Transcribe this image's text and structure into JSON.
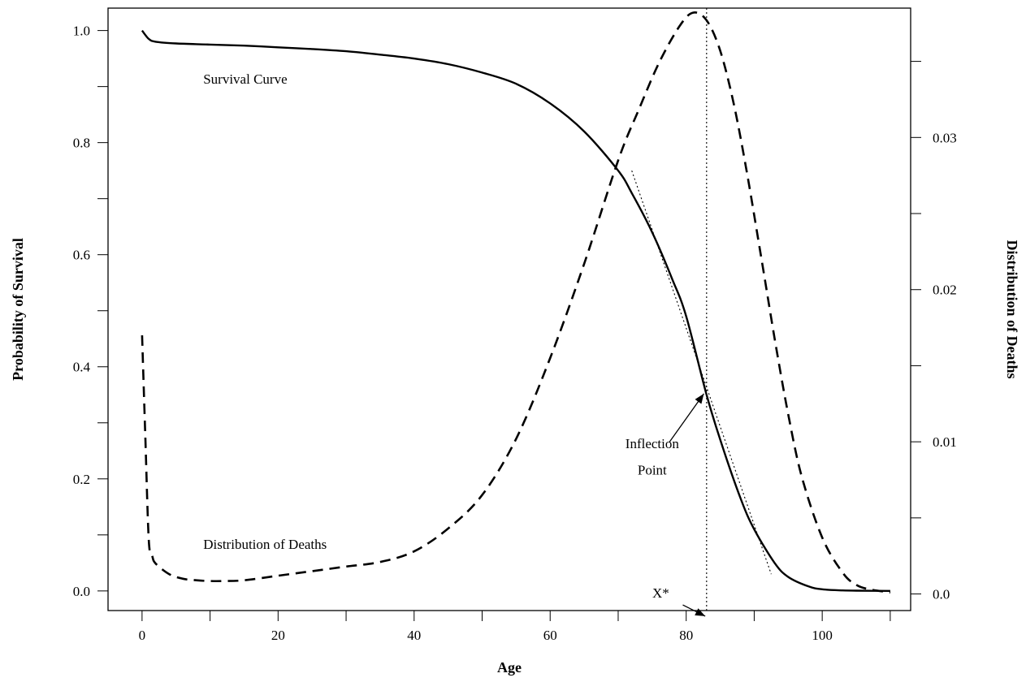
{
  "chart_data": {
    "type": "line",
    "title": "",
    "xlabel": "Age",
    "ylabel": "Probability of Survival",
    "y2label": "Distribution of Deaths",
    "xlim": [
      -5,
      113
    ],
    "ylim": [
      -0.035,
      1.04
    ],
    "y2lim": [
      -0.00109,
      0.0385
    ],
    "x_ticks": [
      0,
      20,
      40,
      60,
      80,
      100
    ],
    "x_tick_labels": [
      "0",
      "20",
      "40",
      "60",
      "80",
      "100"
    ],
    "x_minor_ticks": [
      10,
      30,
      50,
      70,
      90,
      110
    ],
    "y_ticks": [
      0.0,
      0.2,
      0.4,
      0.6,
      0.8,
      1.0
    ],
    "y_tick_labels": [
      "0.0",
      "0.2",
      "0.4",
      "0.6",
      "0.8",
      "1.0"
    ],
    "y_minor_ticks": [
      0.1,
      0.3,
      0.5,
      0.7,
      0.9
    ],
    "y2_ticks": [
      0.0,
      0.01,
      0.02,
      0.03
    ],
    "y2_tick_labels": [
      "0.0",
      "0.01",
      "0.02",
      "0.03"
    ],
    "y2_minor_ticks": [
      0.005,
      0.015,
      0.025,
      0.035
    ],
    "grid": false,
    "series": [
      {
        "name": "Survival Curve",
        "axis": "left",
        "style": "solid",
        "x": [
          0,
          1,
          2,
          5,
          10,
          15,
          20,
          25,
          30,
          35,
          40,
          45,
          50,
          55,
          60,
          65,
          70,
          72,
          75,
          78,
          80,
          83,
          85,
          88,
          90,
          93,
          95,
          98,
          100,
          103,
          105,
          110
        ],
        "y": [
          1.0,
          0.985,
          0.98,
          0.977,
          0.975,
          0.973,
          0.97,
          0.967,
          0.963,
          0.957,
          0.95,
          0.94,
          0.925,
          0.905,
          0.87,
          0.82,
          0.75,
          0.71,
          0.64,
          0.555,
          0.49,
          0.35,
          0.27,
          0.165,
          0.11,
          0.05,
          0.025,
          0.008,
          0.003,
          0.001,
          0.0005,
          0.0
        ]
      },
      {
        "name": "Distribution of Deaths",
        "axis": "right",
        "style": "dashed",
        "x": [
          0,
          0.5,
          1,
          1.5,
          2,
          4,
          6,
          8,
          10,
          12,
          15,
          20,
          25,
          30,
          35,
          40,
          45,
          50,
          55,
          60,
          65,
          70,
          73,
          76,
          79,
          81,
          83,
          85,
          87,
          89,
          91,
          93,
          95,
          97,
          100,
          103,
          105,
          107,
          110
        ],
        "y": [
          0.017,
          0.01,
          0.0035,
          0.0025,
          0.002,
          0.0013,
          0.001,
          0.0009,
          0.00085,
          0.00085,
          0.0009,
          0.0012,
          0.0015,
          0.0018,
          0.0021,
          0.0028,
          0.0043,
          0.0065,
          0.0102,
          0.0155,
          0.0217,
          0.0285,
          0.0318,
          0.0349,
          0.0373,
          0.0382,
          0.0377,
          0.0357,
          0.0322,
          0.0275,
          0.0222,
          0.0168,
          0.0118,
          0.0077,
          0.0037,
          0.0014,
          0.0006,
          0.0003,
          0.0001
        ]
      }
    ],
    "reference_lines": [
      {
        "kind": "vertical",
        "x": 83,
        "style": "dotted"
      },
      {
        "kind": "tangent",
        "x1": 72,
        "y1": 0.75,
        "x2": 92.5,
        "y2": 0.03,
        "style": "dotted"
      }
    ],
    "annotations": [
      {
        "text": "Survival Curve",
        "x": 9,
        "y": 0.905
      },
      {
        "text": "Distribution of Deaths",
        "x": 9,
        "y": 0.075
      },
      {
        "text": "Inflection",
        "x": 75,
        "y": 0.255
      },
      {
        "text": "Point",
        "x": 75,
        "y": 0.208
      },
      {
        "text": "X*",
        "x": 77.5,
        "y": -0.012
      }
    ],
    "arrows": [
      {
        "from": [
          77.5,
          0.265
        ],
        "to": [
          82.6,
          0.352
        ]
      },
      {
        "from": [
          79.5,
          -0.025
        ],
        "to": [
          82.8,
          -0.045
        ]
      }
    ],
    "legend": "none"
  }
}
